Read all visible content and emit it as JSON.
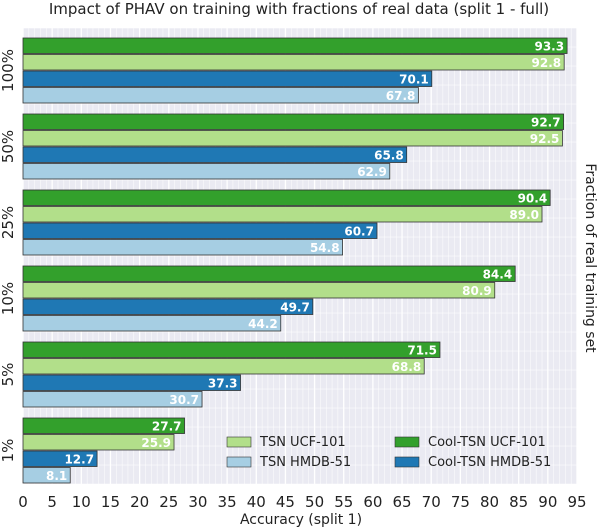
{
  "chart_data": {
    "type": "bar",
    "orientation": "horizontal",
    "title": "Impact of PHAV on training with fractions of real data (split 1 - full)",
    "xlabel": "Accuracy (split 1)",
    "ylabel": "Fraction of real training set",
    "xlim": [
      0,
      95
    ],
    "xticks": [
      "0",
      "5",
      "10",
      "15",
      "20",
      "25",
      "30",
      "35",
      "40",
      "45",
      "50",
      "55",
      "60",
      "65",
      "70",
      "75",
      "80",
      "85",
      "90",
      "95"
    ],
    "grid": true,
    "legend_position": "bottom-right",
    "categories": [
      "100%",
      "50%",
      "25%",
      "10%",
      "5%",
      "1%"
    ],
    "series": [
      {
        "name": "Cool-TSN UCF-101",
        "color": "#33a02c",
        "values": [
          93.3,
          92.7,
          90.4,
          84.4,
          71.5,
          27.7
        ],
        "labels": [
          "93.3",
          "92.7",
          "90.4",
          "84.4",
          "71.5",
          "27.7"
        ]
      },
      {
        "name": "TSN UCF-101",
        "color": "#b2df8a",
        "values": [
          92.8,
          92.5,
          89.0,
          80.9,
          68.8,
          25.9
        ],
        "labels": [
          "92.8",
          "92.5",
          "89.0",
          "80.9",
          "68.8",
          "25.9"
        ]
      },
      {
        "name": "Cool-TSN HMDB-51",
        "color": "#1f78b4",
        "values": [
          70.1,
          65.8,
          60.7,
          49.7,
          37.3,
          12.7
        ],
        "labels": [
          "70.1",
          "65.8",
          "60.7",
          "49.7",
          "37.3",
          "12.7"
        ]
      },
      {
        "name": "TSN HMDB-51",
        "color": "#a6cee3",
        "values": [
          67.8,
          62.9,
          54.8,
          44.2,
          30.7,
          8.1
        ],
        "labels": [
          "67.8",
          "62.9",
          "54.8",
          "44.2",
          "30.7",
          "8.1"
        ]
      }
    ],
    "legend_order": [
      "TSN UCF-101",
      "Cool-TSN UCF-101",
      "TSN HMDB-51",
      "Cool-TSN HMDB-51"
    ],
    "plot_background": "#eaeaf2"
  }
}
